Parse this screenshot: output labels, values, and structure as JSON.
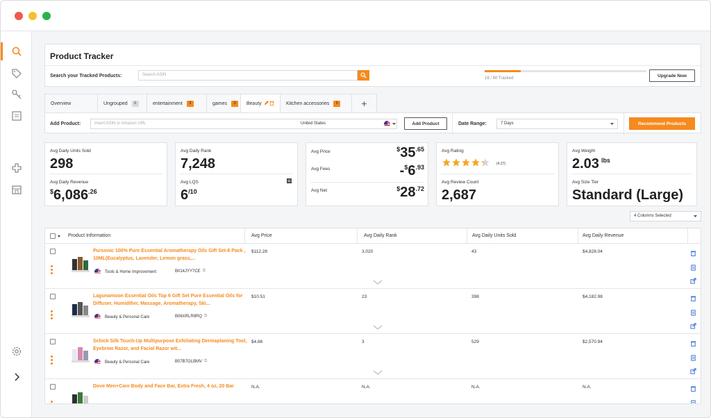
{
  "window": {
    "controls": [
      "close",
      "minimize",
      "maximize"
    ]
  },
  "sidebar": {
    "items": [
      {
        "icon": "search-icon",
        "active": true
      },
      {
        "icon": "tag-icon",
        "active": false
      },
      {
        "icon": "key-icon",
        "active": false
      },
      {
        "icon": "book-icon",
        "active": false
      },
      {
        "icon": "puzzle-icon",
        "active": false
      },
      {
        "icon": "store-icon",
        "active": false
      }
    ],
    "bottom": [
      {
        "icon": "gear-icon"
      },
      {
        "icon": "chevron-right-icon"
      }
    ]
  },
  "tracker": {
    "title": "Product Tracker",
    "search_label": "Search your Tracked Products:",
    "search_placeholder": "Search ASIN",
    "tracked_text": "18 / 80 Tracked",
    "tracked_fraction": 0.225,
    "upgrade_label": "Upgrade Now"
  },
  "tabs": [
    {
      "label": "Overview",
      "badge": null,
      "badge_color": null,
      "active": false
    },
    {
      "label": "Ungrouped",
      "badge": "0",
      "badge_color": "grey",
      "active": false
    },
    {
      "label": "entertainment",
      "badge": "3",
      "badge_color": "orange",
      "active": false
    },
    {
      "label": "games",
      "badge": "3",
      "badge_color": "orange",
      "active": false
    },
    {
      "label": "Beauty",
      "badge": null,
      "badge_color": null,
      "active": true,
      "icons": [
        "edit-icon",
        "trash-icon"
      ]
    },
    {
      "label": "Kitchen accessories",
      "badge": "5",
      "badge_color": "orange",
      "active": false
    }
  ],
  "add_tab_label": "+",
  "add_product": {
    "label": "Add Product:",
    "placeholder": "Insert ASIN or Amazon URL",
    "marketplace": "United States",
    "button_label": "Add Product",
    "date_range_label": "Date Range:",
    "date_range_value": "7 Days",
    "recommend_label": "Recommend Products"
  },
  "metrics": {
    "units": {
      "label": "Avg Daily Units Sold",
      "value": "298"
    },
    "revenue": {
      "label": "Avg Daily Revenue",
      "currency": "$",
      "whole": "6,086",
      "cents": ".26"
    },
    "rank": {
      "label": "Avg Daily Rank",
      "value": "7,248"
    },
    "lqs": {
      "label": "Avg LQS",
      "value": "6",
      "outof": "/10"
    },
    "price": {
      "label": "Avg Price",
      "currency": "$",
      "whole": "35",
      "cents": ".65"
    },
    "fees": {
      "label": "Avg Fees",
      "sign": "-",
      "currency": "$",
      "whole": "6",
      "cents": ".93"
    },
    "net": {
      "label": "Avg Net",
      "currency": "$",
      "whole": "28",
      "cents": ".72"
    },
    "rating": {
      "label": "Avg Rating",
      "stars": 4.27,
      "text": "(4.27)"
    },
    "review_count": {
      "label": "Avg Review Count",
      "value": "2,687"
    },
    "weight": {
      "label": "Avg Weight",
      "value": "2.03",
      "unit": "lbs"
    },
    "size_tier": {
      "label": "Avg Size Tier",
      "value": "Standard (Large)"
    }
  },
  "columns_selector": "4 Columns Selected",
  "table": {
    "headers": [
      "Product Information",
      "Avg Price",
      "Avg Daily Rank",
      "Avg Daily Units Sold",
      "Avg Daily Revenue"
    ],
    "rows": [
      {
        "name": "Pursonic 100% Pure Essential Aromatherapy Oils Gift Set-6 Pack , 10ML(Eucalyptus, Lavender, Lemon grass,...",
        "category": "Tools & Home Improvement",
        "asin": "B014JYY7CE",
        "price": "$112.28",
        "rank": "3,020",
        "units": "43",
        "revenue": "$4,828.04"
      },
      {
        "name": "Lagunamoon Essential Oils Top 6 Gift Set Pure Essential Oils for Diffuser, Humidifier, Massage, Aromatherapy, Ski...",
        "category": "Beauty & Personal Care",
        "asin": "B06XRLR9RQ",
        "price": "$10.51",
        "rank": "23",
        "units": "398",
        "revenue": "$4,182.98"
      },
      {
        "name": "Schick Silk Touch-Up Multipurpose Exfoliating Dermaplaning Tool, Eyebrow Razor, and Facial Razor wit...",
        "category": "Beauty & Personal Care",
        "asin": "B07B7GLBMV",
        "price": "$4.86",
        "rank": "3",
        "units": "529",
        "revenue": "$2,570.94"
      },
      {
        "name": "Dove Men+Care Body and Face Bar, Extra Fresh, 4 oz, 20 Bar",
        "category": "",
        "asin": "",
        "price": "N.A.",
        "rank": "N.A.",
        "units": "N.A.",
        "revenue": "N.A."
      }
    ]
  },
  "colors": {
    "accent": "#f58a1f",
    "star": "#f5a623",
    "text": "#222222"
  }
}
